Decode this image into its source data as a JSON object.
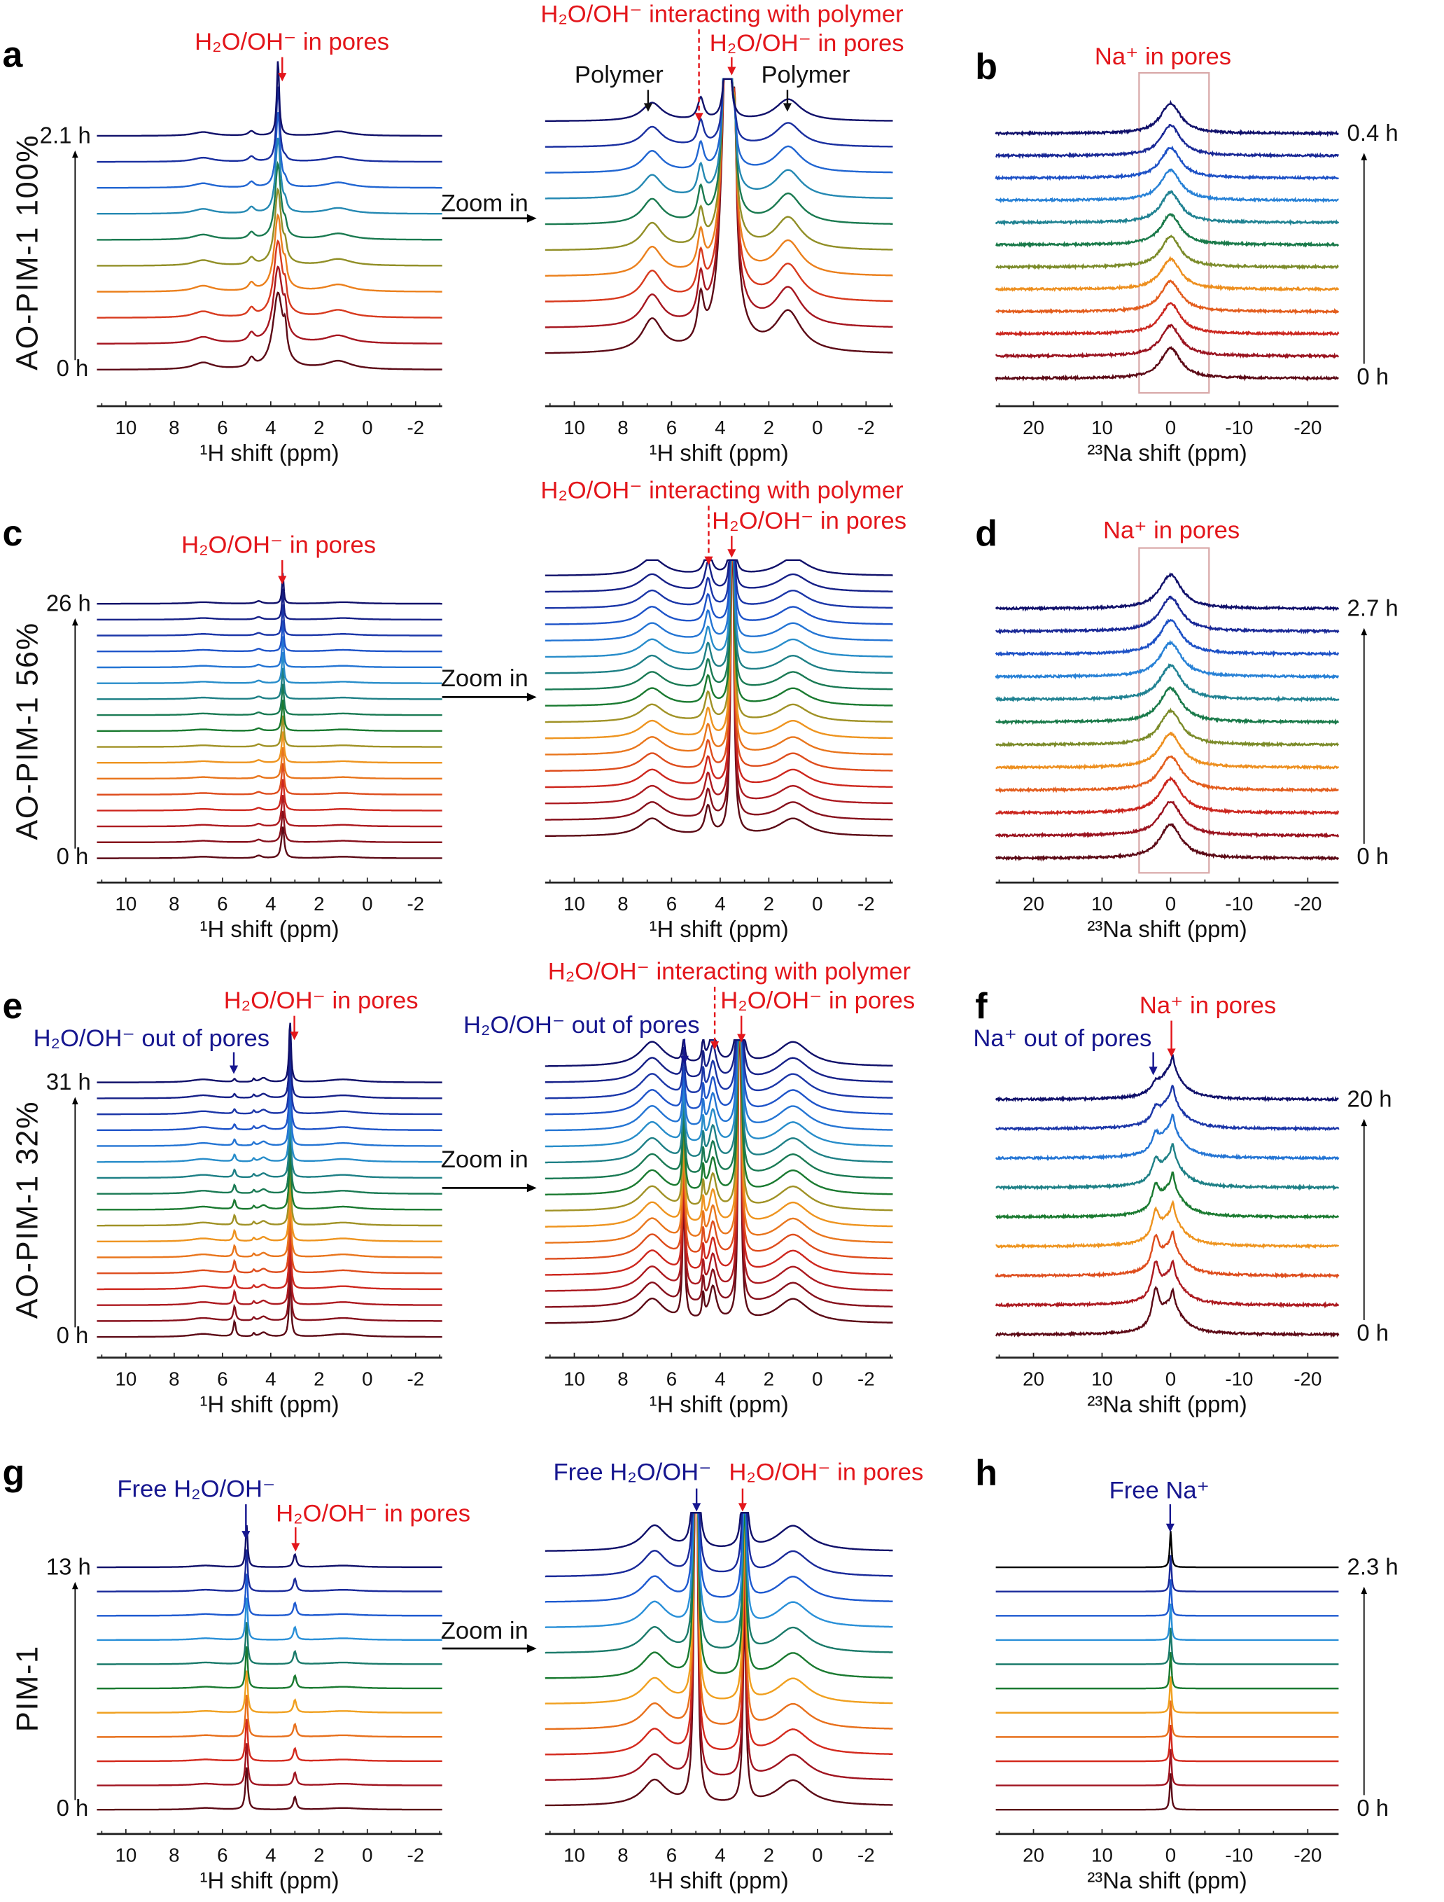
{
  "figure": {
    "rows": [
      {
        "ylabel": "AO-PIM-1 100%",
        "zoom_label": "Zoom in"
      },
      {
        "ylabel": "AO-PIM-1 56%",
        "zoom_label": "Zoom in"
      },
      {
        "ylabel": "AO-PIM-1 32%",
        "zoom_label": "Zoom in"
      },
      {
        "ylabel": "PIM-1",
        "zoom_label": "Zoom in"
      }
    ],
    "colors": {
      "red": "#e3161b",
      "blue": "#16168f",
      "box": "#d9a9a9",
      "trace_gradient_0h_to_end": [
        "#5c0a16",
        "#a01420",
        "#d42a1e",
        "#e8701c",
        "#f0a020",
        "#1a7a30",
        "#1a7a6a",
        "#2a90d8",
        "#1e5ad0",
        "#1a2a9a",
        "#10106a"
      ]
    }
  },
  "chart_data": [
    {
      "id": "a-left",
      "panel_letter": "a",
      "type": "line",
      "xlabel": "¹H shift (ppm)",
      "xlim": [
        11.2,
        -3.1
      ],
      "x_ticks": [
        10,
        8,
        6,
        4,
        2,
        0,
        -2
      ],
      "n_traces": 10,
      "time_labels": [
        "0 h",
        "2.1 h"
      ],
      "peaks": [
        {
          "ppm": 6.8,
          "width": 1.0,
          "height": [
            0.09,
            0.05
          ]
        },
        {
          "ppm": 4.8,
          "width": 0.3,
          "height": [
            0.12,
            0.06
          ]
        },
        {
          "ppm": 3.7,
          "width": [
            0.5,
            0.12
          ],
          "height": [
            1,
            1
          ]
        },
        {
          "ppm": 3.4,
          "width": 0.15,
          "height": [
            0.3,
            0
          ]
        },
        {
          "ppm": 1.2,
          "width": 1.3,
          "height": [
            0.11,
            0.06
          ]
        }
      ],
      "annotations": [
        {
          "text": "H₂O/OH⁻ in pores",
          "color": "#e3161b"
        }
      ]
    },
    {
      "id": "a-zoom",
      "type": "line",
      "xlabel": "¹H shift (ppm)",
      "xlim": [
        11.2,
        -3.1
      ],
      "x_ticks": [
        10,
        8,
        6,
        4,
        2,
        0,
        -2
      ],
      "n_traces": 10,
      "clipped": true,
      "peaks": [
        {
          "ppm": 6.8,
          "width": 1.0,
          "height": [
            0.09,
            0.05
          ]
        },
        {
          "ppm": 4.8,
          "width": 0.3,
          "height": [
            0.12,
            0.06
          ]
        },
        {
          "ppm": 3.7,
          "width": [
            0.5,
            0.12
          ],
          "height": [
            1,
            1
          ]
        },
        {
          "ppm": 3.4,
          "width": 0.15,
          "height": [
            0.3,
            0
          ]
        },
        {
          "ppm": 1.2,
          "width": 1.3,
          "height": [
            0.11,
            0.06
          ]
        }
      ],
      "annotations": [
        {
          "text": "H₂O/OH⁻ interacting with polymer",
          "color": "#e3161b"
        },
        {
          "text": "H₂O/OH⁻ in pores",
          "color": "#e3161b"
        },
        {
          "text": "Polymer",
          "color": "#111111"
        },
        {
          "text": "Polymer",
          "color": "#111111"
        }
      ]
    },
    {
      "id": "b",
      "panel_letter": "b",
      "type": "line",
      "xlabel": "²³Na shift (ppm)",
      "xlim": [
        25.5,
        -24.5
      ],
      "x_ticks": [
        20,
        10,
        0,
        -10,
        -20
      ],
      "n_traces": 12,
      "time_labels": [
        "0 h",
        "0.4 h"
      ],
      "noise": true,
      "highlight_box_ppm": [
        4.6,
        -5.6
      ],
      "peaks": [
        {
          "ppm": 0,
          "width": 3.5,
          "height": [
            1,
            1
          ]
        }
      ],
      "annotations": [
        {
          "text": "Na⁺ in pores",
          "color": "#e3161b"
        }
      ]
    },
    {
      "id": "c-left",
      "panel_letter": "c",
      "type": "line",
      "xlabel": "¹H shift (ppm)",
      "xlim": [
        11.2,
        -3.1
      ],
      "x_ticks": [
        10,
        8,
        6,
        4,
        2,
        0,
        -2
      ],
      "n_traces": 17,
      "time_labels": [
        "0 h",
        "26 h"
      ],
      "peaks": [
        {
          "ppm": 6.8,
          "width": 1.2,
          "height": 0.05
        },
        {
          "ppm": 4.5,
          "width": 0.3,
          "height": 0.08
        },
        {
          "ppm": 3.5,
          "width": [
            0.14,
            0.08
          ],
          "height": 1
        },
        {
          "ppm": 1.0,
          "width": 1.5,
          "height": 0.05
        }
      ],
      "annotations": [
        {
          "text": "H₂O/OH⁻ in pores",
          "color": "#e3161b"
        }
      ]
    },
    {
      "id": "c-zoom",
      "type": "line",
      "xlabel": "¹H shift (ppm)",
      "xlim": [
        11.2,
        -3.1
      ],
      "x_ticks": [
        10,
        8,
        6,
        4,
        2,
        0,
        -2
      ],
      "n_traces": 17,
      "clipped": true,
      "peaks": [
        {
          "ppm": 6.8,
          "width": 1.2,
          "height": 0.05
        },
        {
          "ppm": 4.5,
          "width": 0.3,
          "height": 0.08
        },
        {
          "ppm": 3.5,
          "width": [
            0.14,
            0.08
          ],
          "height": 1
        },
        {
          "ppm": 1.0,
          "width": 1.5,
          "height": 0.05
        }
      ],
      "annotations": [
        {
          "text": "H₂O/OH⁻ interacting with polymer",
          "color": "#e3161b"
        },
        {
          "text": "H₂O/OH⁻ in pores",
          "color": "#e3161b"
        }
      ]
    },
    {
      "id": "d",
      "panel_letter": "d",
      "type": "line",
      "xlabel": "²³Na shift (ppm)",
      "xlim": [
        25.5,
        -24.5
      ],
      "x_ticks": [
        20,
        10,
        0,
        -10,
        -20
      ],
      "n_traces": 12,
      "time_labels": [
        "0 h",
        "2.7 h"
      ],
      "noise": true,
      "highlight_box_ppm": [
        4.6,
        -5.6
      ],
      "peaks": [
        {
          "ppm": 0,
          "width": 3.8,
          "height": [
            1,
            1
          ]
        }
      ],
      "annotations": [
        {
          "text": "Na⁺ in pores",
          "color": "#e3161b"
        }
      ]
    },
    {
      "id": "e-left",
      "panel_letter": "e",
      "type": "line",
      "xlabel": "¹H shift (ppm)",
      "xlim": [
        11.2,
        -3.1
      ],
      "x_ticks": [
        10,
        8,
        6,
        4,
        2,
        0,
        -2
      ],
      "n_traces": 17,
      "time_labels": [
        "0 h",
        "31 h"
      ],
      "peaks": [
        {
          "ppm": 6.8,
          "width": 1.2,
          "height": 0.05
        },
        {
          "ppm": 5.5,
          "width": 0.12,
          "height": [
            0.25,
            0.05
          ]
        },
        {
          "ppm": 4.7,
          "width": 0.1,
          "height": 0.05
        },
        {
          "ppm": 4.3,
          "width": 0.35,
          "height": 0.07
        },
        {
          "ppm": 3.2,
          "width": 0.1,
          "height": 1
        },
        {
          "ppm": 1.0,
          "width": 1.6,
          "height": 0.05
        }
      ],
      "annotations": [
        {
          "text": "H₂O/OH⁻ in pores",
          "color": "#e3161b"
        },
        {
          "text": "H₂O/OH⁻ out of pores",
          "color": "#16168f"
        }
      ]
    },
    {
      "id": "e-zoom",
      "type": "line",
      "xlabel": "¹H shift (ppm)",
      "xlim": [
        11.2,
        -3.1
      ],
      "x_ticks": [
        10,
        8,
        6,
        4,
        2,
        0,
        -2
      ],
      "n_traces": 17,
      "clipped": true,
      "peaks": [
        {
          "ppm": 6.8,
          "width": 1.2,
          "height": 0.05
        },
        {
          "ppm": 5.5,
          "width": 0.12,
          "height": [
            0.25,
            0.05
          ]
        },
        {
          "ppm": 4.7,
          "width": 0.1,
          "height": 0.05
        },
        {
          "ppm": 4.3,
          "width": 0.35,
          "height": 0.07
        },
        {
          "ppm": 3.2,
          "width": 0.1,
          "height": 1
        },
        {
          "ppm": 1.0,
          "width": 1.6,
          "height": 0.05
        }
      ],
      "annotations": [
        {
          "text": "H₂O/OH⁻ interacting with polymer",
          "color": "#e3161b"
        },
        {
          "text": "H₂O/OH⁻ in pores",
          "color": "#e3161b"
        },
        {
          "text": "H₂O/OH⁻ out of pores",
          "color": "#16168f"
        }
      ]
    },
    {
      "id": "f",
      "panel_letter": "f",
      "type": "line",
      "xlabel": "²³Na shift (ppm)",
      "xlim": [
        25.5,
        -24.5
      ],
      "x_ticks": [
        20,
        10,
        0,
        -10,
        -20
      ],
      "n_traces": 9,
      "time_labels": [
        "0 h",
        "20 h"
      ],
      "noise": true,
      "peaks": [
        {
          "ppm": 0,
          "width": 4,
          "height": 0.6
        },
        {
          "ppm": -0.3,
          "width": 0.6,
          "height": 0.3
        },
        {
          "ppm": 2.2,
          "width": 1.2,
          "height": [
            0.7,
            0.15
          ]
        }
      ],
      "annotations": [
        {
          "text": "Na⁺ in pores",
          "color": "#e3161b"
        },
        {
          "text": "Na⁺ out of pores",
          "color": "#16168f"
        }
      ]
    },
    {
      "id": "g-left",
      "panel_letter": "g",
      "type": "line",
      "xlabel": "¹H shift (ppm)",
      "xlim": [
        11.2,
        -3.1
      ],
      "x_ticks": [
        10,
        8,
        6,
        4,
        2,
        0,
        -2
      ],
      "n_traces": 11,
      "time_labels": [
        "0 h",
        "13 h"
      ],
      "peaks": [
        {
          "ppm": 6.7,
          "width": 1.2,
          "height": 0.04
        },
        {
          "ppm": 5.0,
          "width": [
            0.12,
            0.1
          ],
          "height": 1
        },
        {
          "ppm": 3.0,
          "width": 0.15,
          "height": 0.3
        },
        {
          "ppm": 1.0,
          "width": 1.6,
          "height": 0.04
        }
      ],
      "annotations": [
        {
          "text": "Free H₂O/OH⁻",
          "color": "#16168f"
        },
        {
          "text": "H₂O/OH⁻ in pores",
          "color": "#e3161b"
        }
      ]
    },
    {
      "id": "g-zoom",
      "type": "line",
      "xlabel": "¹H shift (ppm)",
      "xlim": [
        11.2,
        -3.1
      ],
      "x_ticks": [
        10,
        8,
        6,
        4,
        2,
        0,
        -2
      ],
      "n_traces": 11,
      "clipped": true,
      "peaks": [
        {
          "ppm": 6.7,
          "width": 1.2,
          "height": 0.04
        },
        {
          "ppm": 5.0,
          "width": [
            0.12,
            0.1
          ],
          "height": 1
        },
        {
          "ppm": 3.0,
          "width": 0.15,
          "height": 0.3
        },
        {
          "ppm": 1.0,
          "width": 1.6,
          "height": 0.04
        }
      ],
      "annotations": [
        {
          "text": "Free H₂O/OH⁻",
          "color": "#16168f"
        },
        {
          "text": "H₂O/OH⁻ in pores",
          "color": "#e3161b"
        }
      ]
    },
    {
      "id": "h",
      "panel_letter": "h",
      "type": "line",
      "xlabel": "²³Na shift (ppm)",
      "xlim": [
        25.5,
        -24.5
      ],
      "x_ticks": [
        20,
        10,
        0,
        -10,
        -20
      ],
      "n_traces": 11,
      "time_labels": [
        "0 h",
        "2.3 h"
      ],
      "top_trace_color": "#000000",
      "peaks": [
        {
          "ppm": 0,
          "width": 0.3,
          "height": 1
        }
      ],
      "annotations": [
        {
          "text": "Free Na⁺",
          "color": "#16168f"
        }
      ]
    }
  ]
}
